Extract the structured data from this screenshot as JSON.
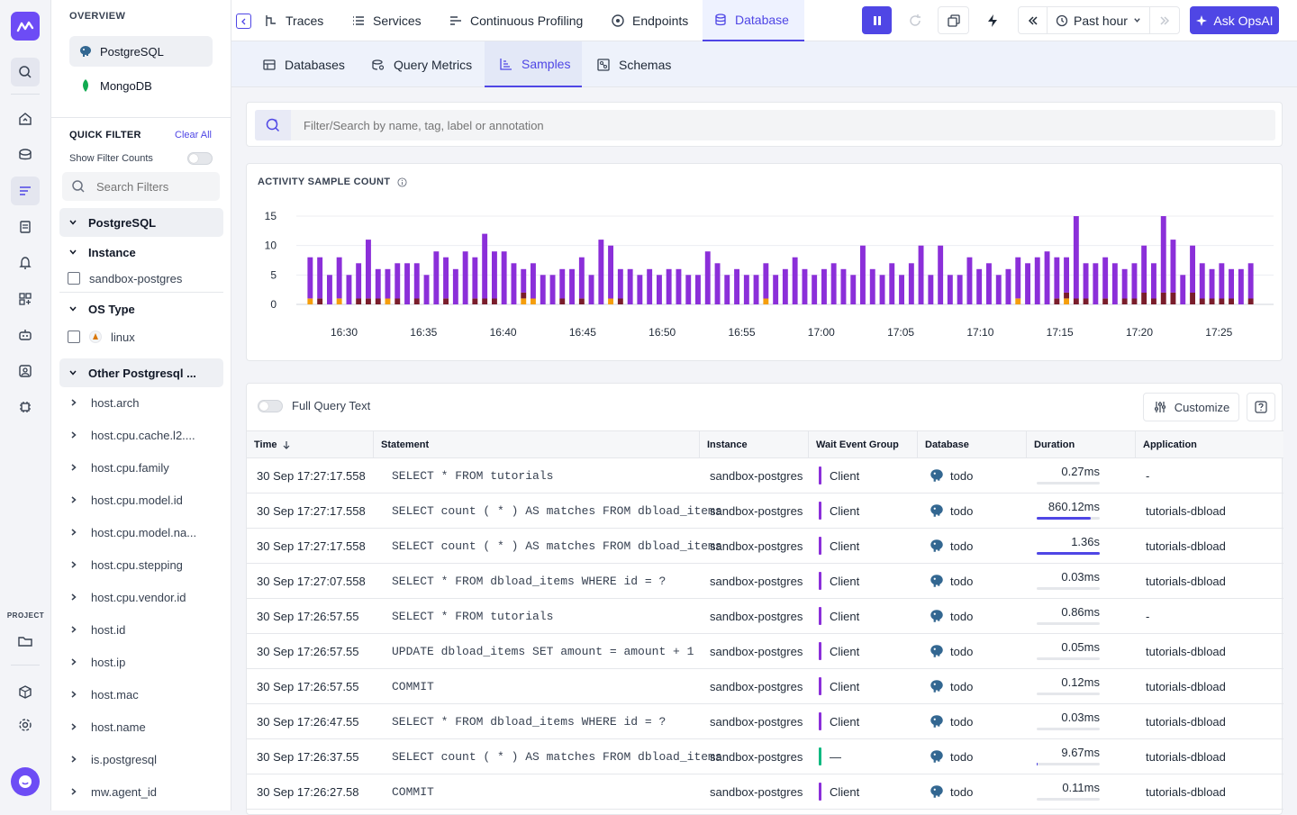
{
  "sidebar": {
    "overview_label": "OVERVIEW",
    "databases": [
      {
        "label": "PostgreSQL",
        "icon": "postgres-elephant-icon",
        "active": true
      },
      {
        "label": "MongoDB",
        "icon": "mongodb-leaf-icon",
        "active": false
      }
    ],
    "quick_filter": {
      "title": "QUICK FILTER",
      "clear_all": "Clear All",
      "show_counts_label": "Show Filter Counts",
      "search_placeholder": "Search Filters"
    },
    "groups": {
      "postgresql": "PostgreSQL",
      "instance": "Instance",
      "instance_value": "sandbox-postgres",
      "os_type": "OS Type",
      "os_value": "linux",
      "other": "Other Postgresql ..."
    },
    "attributes": [
      "host.arch",
      "host.cpu.cache.l2....",
      "host.cpu.family",
      "host.cpu.model.id",
      "host.cpu.model.na...",
      "host.cpu.stepping",
      "host.cpu.vendor.id",
      "host.id",
      "host.ip",
      "host.mac",
      "host.name",
      "is.postgresql",
      "mw.agent_id"
    ]
  },
  "rail": {
    "project_label": "PROJECT"
  },
  "topbar": {
    "tabs": [
      {
        "label": "Traces",
        "icon": "traces-icon"
      },
      {
        "label": "Services",
        "icon": "services-list-icon"
      },
      {
        "label": "Continuous Profiling",
        "icon": "profiling-icon"
      },
      {
        "label": "Endpoints",
        "icon": "endpoints-icon"
      },
      {
        "label": "Database",
        "icon": "database-icon",
        "active": true
      }
    ],
    "time_range": "Past hour",
    "ask_label": "Ask OpsAI"
  },
  "subtabs": [
    {
      "label": "Databases",
      "icon": "databases-icon"
    },
    {
      "label": "Query Metrics",
      "icon": "query-metrics-icon"
    },
    {
      "label": "Samples",
      "icon": "samples-icon",
      "active": true
    },
    {
      "label": "Schemas",
      "icon": "schemas-icon"
    }
  ],
  "search": {
    "placeholder": "Filter/Search by name, tag, label or annotation"
  },
  "chart_data": {
    "type": "bar",
    "title": "ACTIVITY SAMPLE COUNT",
    "ylim": [
      0,
      15
    ],
    "yticks": [
      0,
      5,
      10,
      15
    ],
    "xticks": [
      "16:30",
      "16:35",
      "16:40",
      "16:45",
      "16:50",
      "16:55",
      "17:00",
      "17:05",
      "17:10",
      "17:15",
      "17:20",
      "17:25"
    ],
    "series": [
      {
        "name": "",
        "color": "#8b2fd9",
        "values": [
          7,
          7,
          5,
          7,
          5,
          6,
          10,
          5,
          5,
          6,
          7,
          6,
          5,
          9,
          7,
          6,
          9,
          7,
          11,
          8,
          9,
          7,
          4,
          6,
          5,
          5,
          5,
          6,
          7,
          5,
          11,
          9,
          5,
          6,
          5,
          6,
          5,
          6,
          6,
          5,
          5,
          9,
          7,
          5,
          6,
          5,
          5,
          6,
          5,
          6,
          8,
          6,
          5,
          6,
          7,
          6,
          5,
          10,
          6,
          5,
          7,
          5,
          7,
          10,
          5,
          10,
          5,
          5,
          8,
          6,
          7,
          5,
          6,
          7,
          7,
          8,
          9,
          7,
          6,
          14,
          6,
          7,
          7,
          7,
          5,
          6,
          8,
          6,
          13,
          9,
          5,
          8,
          6,
          5,
          6,
          5,
          6,
          6
        ]
      },
      {
        "name": "",
        "color": "#7a1d2b",
        "values": [
          0,
          1,
          0,
          0,
          0,
          1,
          1,
          1,
          0,
          1,
          0,
          1,
          0,
          0,
          1,
          0,
          0,
          1,
          1,
          1,
          0,
          0,
          1,
          0,
          0,
          0,
          1,
          0,
          1,
          0,
          0,
          0,
          1,
          0,
          0,
          0,
          0,
          0,
          0,
          0,
          0,
          0,
          0,
          0,
          0,
          0,
          0,
          0,
          0,
          0,
          0,
          0,
          0,
          0,
          0,
          0,
          0,
          0,
          0,
          0,
          0,
          0,
          0,
          0,
          0,
          0,
          0,
          0,
          0,
          0,
          0,
          0,
          0,
          0,
          0,
          0,
          0,
          1,
          1,
          1,
          1,
          0,
          1,
          0,
          1,
          1,
          2,
          1,
          2,
          2,
          0,
          2,
          1,
          1,
          1,
          1,
          0,
          1
        ]
      },
      {
        "name": "",
        "color": "#f59e0b",
        "values": [
          1,
          0,
          0,
          1,
          0,
          0,
          0,
          0,
          1,
          0,
          0,
          0,
          0,
          0,
          0,
          0,
          0,
          0,
          0,
          0,
          0,
          0,
          1,
          1,
          0,
          0,
          0,
          0,
          0,
          0,
          0,
          1,
          0,
          0,
          0,
          0,
          0,
          0,
          0,
          0,
          0,
          0,
          0,
          0,
          0,
          0,
          0,
          1,
          0,
          0,
          0,
          0,
          0,
          0,
          0,
          0,
          0,
          0,
          0,
          0,
          0,
          0,
          0,
          0,
          0,
          0,
          0,
          0,
          0,
          0,
          0,
          0,
          0,
          1,
          0,
          0,
          0,
          0,
          1,
          0,
          0,
          0,
          0,
          0,
          0,
          0,
          0,
          0,
          0,
          0,
          0,
          0,
          0,
          0,
          0,
          0,
          0,
          0
        ]
      }
    ]
  },
  "table": {
    "full_query_label": "Full Query Text",
    "customize_label": "Customize",
    "columns": [
      "Time",
      "Statement",
      "Instance",
      "Wait Event Group",
      "Database",
      "Duration",
      "Application"
    ],
    "rows": [
      {
        "time": "30 Sep 17:27:17.558",
        "statement": "SELECT * FROM tutorials",
        "instance": "sandbox-postgres",
        "wait": "Client",
        "wait_color": "#8b2fd9",
        "database": "todo",
        "duration": "0.27ms",
        "duration_frac": 0,
        "app": "-"
      },
      {
        "time": "30 Sep 17:27:17.558",
        "statement": "SELECT count ( * ) AS matches FROM dbload_items",
        "instance": "sandbox-postgres",
        "wait": "Client",
        "wait_color": "#8b2fd9",
        "database": "todo",
        "duration": "860.12ms",
        "duration_frac": 0.86,
        "app": "tutorials-dbload"
      },
      {
        "time": "30 Sep 17:27:17.558",
        "statement": "SELECT count ( * ) AS matches FROM dbload_items",
        "instance": "sandbox-postgres",
        "wait": "Client",
        "wait_color": "#8b2fd9",
        "database": "todo",
        "duration": "1.36s",
        "duration_frac": 1,
        "app": "tutorials-dbload"
      },
      {
        "time": "30 Sep 17:27:07.558",
        "statement": "SELECT * FROM dbload_items WHERE id = ?",
        "instance": "sandbox-postgres",
        "wait": "Client",
        "wait_color": "#8b2fd9",
        "database": "todo",
        "duration": "0.03ms",
        "duration_frac": 0,
        "app": "tutorials-dbload"
      },
      {
        "time": "30 Sep 17:26:57.55",
        "statement": "SELECT * FROM tutorials",
        "instance": "sandbox-postgres",
        "wait": "Client",
        "wait_color": "#8b2fd9",
        "database": "todo",
        "duration": "0.86ms",
        "duration_frac": 0,
        "app": "-"
      },
      {
        "time": "30 Sep 17:26:57.55",
        "statement": "UPDATE dbload_items SET amount = amount + 1",
        "instance": "sandbox-postgres",
        "wait": "Client",
        "wait_color": "#8b2fd9",
        "database": "todo",
        "duration": "0.05ms",
        "duration_frac": 0,
        "app": "tutorials-dbload"
      },
      {
        "time": "30 Sep 17:26:57.55",
        "statement": "COMMIT",
        "instance": "sandbox-postgres",
        "wait": "Client",
        "wait_color": "#8b2fd9",
        "database": "todo",
        "duration": "0.12ms",
        "duration_frac": 0,
        "app": "tutorials-dbload"
      },
      {
        "time": "30 Sep 17:26:47.55",
        "statement": "SELECT * FROM dbload_items WHERE id = ?",
        "instance": "sandbox-postgres",
        "wait": "Client",
        "wait_color": "#8b2fd9",
        "database": "todo",
        "duration": "0.03ms",
        "duration_frac": 0,
        "app": "tutorials-dbload"
      },
      {
        "time": "30 Sep 17:26:37.55",
        "statement": "SELECT count ( * ) AS matches FROM dbload_items",
        "instance": "sandbox-postgres",
        "wait": "—",
        "wait_color": "#10b981",
        "database": "todo",
        "duration": "9.67ms",
        "duration_frac": 0.01,
        "app": "tutorials-dbload"
      },
      {
        "time": "30 Sep 17:26:27.58",
        "statement": "COMMIT",
        "instance": "sandbox-postgres",
        "wait": "Client",
        "wait_color": "#8b2fd9",
        "database": "todo",
        "duration": "0.11ms",
        "duration_frac": 0,
        "app": "tutorials-dbload"
      }
    ]
  }
}
